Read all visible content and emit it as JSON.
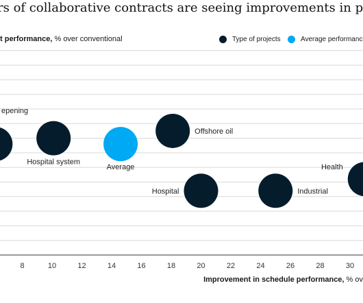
{
  "chart_data": {
    "type": "scatter",
    "title": "rs of collaborative contracts are seeing improvements in perform",
    "ylabel_bold": "t performance,",
    "ylabel_rest": " % over conventional",
    "xlabel_bold": "Improvement in schedule performance,",
    "xlabel_rest": " % ov",
    "x_ticks": [
      "8",
      "10",
      "12",
      "14",
      "16",
      "18",
      "20",
      "22",
      "24",
      "26",
      "28",
      "30"
    ],
    "x_tick_values": [
      8,
      10,
      12,
      14,
      16,
      18,
      20,
      22,
      24,
      26,
      28,
      30
    ],
    "grid": true,
    "legend": [
      {
        "label": "Type of projects",
        "color": "#051c2c"
      },
      {
        "label": "Average performance c",
        "color": "#00a9f4"
      }
    ],
    "points": [
      {
        "label": "epening",
        "x": 6.2,
        "y": 7.6,
        "color": "#051c2c"
      },
      {
        "label": "Hospital system",
        "x": 10.1,
        "y": 8.0,
        "color": "#051c2c"
      },
      {
        "label": "Average",
        "x": 14.6,
        "y": 7.6,
        "color": "#00a9f4"
      },
      {
        "label": "Offshore oil",
        "x": 18.1,
        "y": 8.5,
        "color": "#051c2c"
      },
      {
        "label": "Hospital",
        "x": 20.0,
        "y": 4.4,
        "color": "#051c2c"
      },
      {
        "label": "Industrial",
        "x": 25.0,
        "y": 4.4,
        "color": "#051c2c"
      },
      {
        "label": "Health",
        "x": 31.0,
        "y": 5.2,
        "color": "#051c2c"
      }
    ]
  }
}
